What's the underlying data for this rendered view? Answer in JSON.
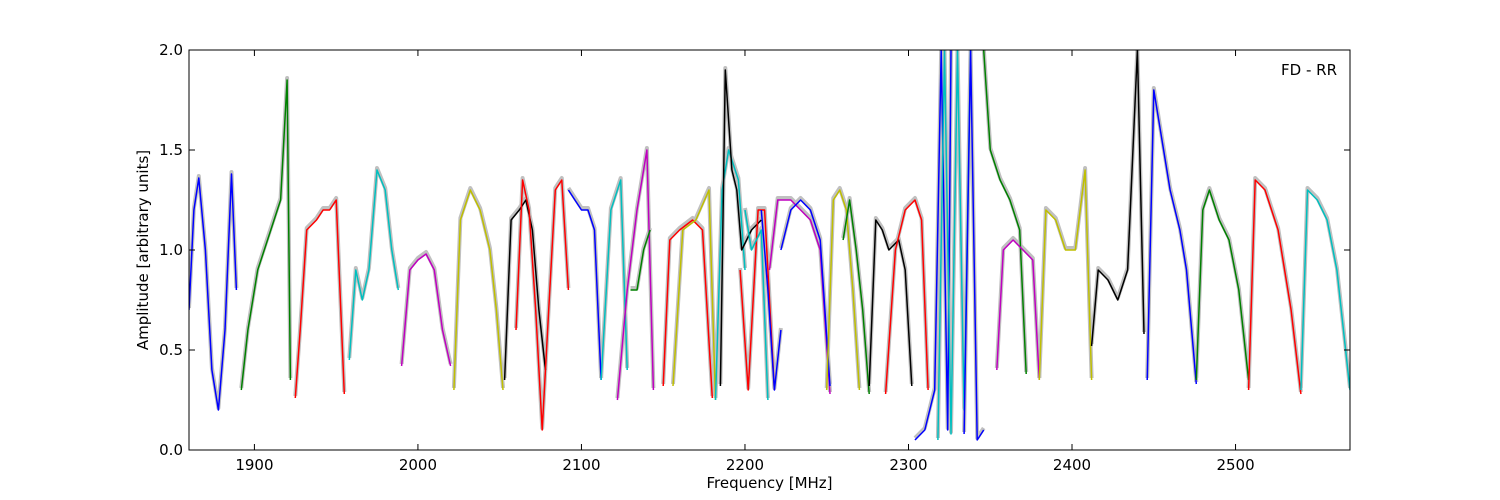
{
  "chart_data": {
    "type": "line",
    "title": "",
    "xlabel": "Frequency [MHz]",
    "ylabel": "Amplitude [arbitrary units]",
    "xlim": [
      1860,
      2570
    ],
    "ylim": [
      0.0,
      2.0
    ],
    "xticks": [
      {
        "value": 1900,
        "label": "1900"
      },
      {
        "value": 2000,
        "label": "2000"
      },
      {
        "value": 2100,
        "label": "2100"
      },
      {
        "value": 2200,
        "label": "2200"
      },
      {
        "value": 2300,
        "label": "2300"
      },
      {
        "value": 2400,
        "label": "2400"
      },
      {
        "value": 2500,
        "label": "2500"
      }
    ],
    "yticks": [
      {
        "value": 0.0,
        "label": "0.0"
      },
      {
        "value": 0.5,
        "label": "0.5"
      },
      {
        "value": 1.0,
        "label": "1.0"
      },
      {
        "value": 1.5,
        "label": "1.5"
      },
      {
        "value": 2.0,
        "label": "2.0"
      }
    ],
    "grid": false,
    "annotation": {
      "text": "FD - RR",
      "placement": "top-right"
    },
    "background_color": "#c0c0c0",
    "series": [
      {
        "color": "#0000ff",
        "x": [
          1860,
          1863,
          1866,
          1870,
          1874,
          1878,
          1882,
          1886,
          1889
        ],
        "y": [
          0.7,
          1.2,
          1.36,
          1.0,
          0.4,
          0.2,
          0.6,
          1.38,
          0.8
        ]
      },
      {
        "color": "#008000",
        "x": [
          1892,
          1896,
          1902,
          1910,
          1916,
          1920,
          1922
        ],
        "y": [
          0.3,
          0.6,
          0.9,
          1.1,
          1.25,
          1.85,
          0.35
        ]
      },
      {
        "color": "#ff0000",
        "x": [
          1925,
          1928,
          1932,
          1938,
          1942,
          1946,
          1950,
          1955
        ],
        "y": [
          0.26,
          0.6,
          1.1,
          1.15,
          1.2,
          1.2,
          1.25,
          0.28
        ]
      },
      {
        "color": "#00bfbf",
        "x": [
          1958,
          1962,
          1966,
          1970,
          1975,
          1980,
          1984,
          1988
        ],
        "y": [
          0.45,
          0.9,
          0.75,
          0.9,
          1.4,
          1.3,
          1.0,
          0.8
        ]
      },
      {
        "color": "#bf00bf",
        "x": [
          1990,
          1995,
          2000,
          2005,
          2010,
          2015,
          2020
        ],
        "y": [
          0.42,
          0.9,
          0.95,
          0.98,
          0.9,
          0.6,
          0.42
        ]
      },
      {
        "color": "#bfbf00",
        "x": [
          2022,
          2026,
          2032,
          2038,
          2044,
          2048,
          2052
        ],
        "y": [
          0.3,
          1.15,
          1.3,
          1.2,
          1.0,
          0.7,
          0.3
        ]
      },
      {
        "color": "#000000",
        "x": [
          2053,
          2057,
          2062,
          2066,
          2070,
          2074,
          2078
        ],
        "y": [
          0.35,
          1.15,
          1.2,
          1.25,
          1.1,
          0.7,
          0.4
        ]
      },
      {
        "color": "#ff0000",
        "x": [
          2060,
          2064,
          2068,
          2072,
          2076,
          2080,
          2084,
          2088,
          2092
        ],
        "y": [
          0.6,
          1.35,
          1.2,
          0.7,
          0.1,
          0.7,
          1.3,
          1.35,
          0.8
        ]
      },
      {
        "color": "#0000ff",
        "x": [
          2092,
          2096,
          2100,
          2104,
          2108,
          2112
        ],
        "y": [
          1.3,
          1.25,
          1.2,
          1.2,
          1.1,
          0.35
        ]
      },
      {
        "color": "#00bfbf",
        "x": [
          2112,
          2118,
          2124,
          2128
        ],
        "y": [
          0.35,
          1.2,
          1.35,
          0.4
        ]
      },
      {
        "color": "#bf00bf",
        "x": [
          2122,
          2128,
          2134,
          2140,
          2144
        ],
        "y": [
          0.25,
          0.8,
          1.2,
          1.5,
          0.3
        ]
      },
      {
        "color": "#008000",
        "x": [
          2130,
          2134,
          2138,
          2142
        ],
        "y": [
          0.8,
          0.8,
          1.0,
          1.1
        ]
      },
      {
        "color": "#ff0000",
        "x": [
          2150,
          2154,
          2160,
          2168,
          2174,
          2180
        ],
        "y": [
          0.32,
          1.05,
          1.1,
          1.15,
          1.1,
          0.26
        ]
      },
      {
        "color": "#bfbf00",
        "x": [
          2156,
          2162,
          2170,
          2178,
          2182
        ],
        "y": [
          0.32,
          1.1,
          1.15,
          1.3,
          0.25
        ]
      },
      {
        "color": "#00bfbf",
        "x": [
          2182,
          2186,
          2190,
          2196,
          2200
        ],
        "y": [
          0.25,
          1.3,
          1.5,
          1.35,
          0.9
        ]
      },
      {
        "color": "#000000",
        "x": [
          2185,
          2188,
          2192,
          2195,
          2198,
          2204,
          2210
        ],
        "y": [
          0.32,
          1.9,
          1.4,
          1.3,
          1.0,
          1.1,
          1.15
        ]
      },
      {
        "color": "#ff0000",
        "x": [
          2197,
          2202,
          2208,
          2212,
          2218
        ],
        "y": [
          0.9,
          0.3,
          1.2,
          1.2,
          0.3
        ]
      },
      {
        "color": "#00bfbf",
        "x": [
          2200,
          2204,
          2210,
          2214
        ],
        "y": [
          1.2,
          1.0,
          1.1,
          0.25
        ]
      },
      {
        "color": "#0000ff",
        "x": [
          2210,
          2214,
          2218,
          2222
        ],
        "y": [
          1.2,
          0.8,
          0.3,
          0.6
        ]
      },
      {
        "color": "#bf00bf",
        "x": [
          2215,
          2220,
          2228,
          2234,
          2240,
          2246,
          2252
        ],
        "y": [
          0.9,
          1.25,
          1.25,
          1.2,
          1.15,
          1.0,
          0.28
        ]
      },
      {
        "color": "#0000ff",
        "x": [
          2222,
          2228,
          2234,
          2240,
          2246,
          2252
        ],
        "y": [
          1.0,
          1.2,
          1.25,
          1.2,
          1.05,
          0.32
        ]
      },
      {
        "color": "#bfbf00",
        "x": [
          2250,
          2254,
          2258,
          2262,
          2266,
          2270
        ],
        "y": [
          0.3,
          1.25,
          1.3,
          1.2,
          0.8,
          0.3
        ]
      },
      {
        "color": "#008000",
        "x": [
          2260,
          2264,
          2268,
          2272,
          2276
        ],
        "y": [
          1.05,
          1.25,
          1.0,
          0.7,
          0.28
        ]
      },
      {
        "color": "#000000",
        "x": [
          2276,
          2280,
          2284,
          2288,
          2294,
          2298,
          2302
        ],
        "y": [
          0.32,
          1.15,
          1.1,
          1.0,
          1.05,
          0.9,
          0.32
        ]
      },
      {
        "color": "#ff0000",
        "x": [
          2286,
          2292,
          2298,
          2304,
          2308,
          2312
        ],
        "y": [
          0.28,
          1.0,
          1.2,
          1.25,
          1.15,
          0.3
        ]
      },
      {
        "color": "#0000ff",
        "x": [
          2304,
          2310,
          2316,
          2320,
          2324,
          2326
        ],
        "y": [
          0.05,
          0.1,
          0.3,
          2.0,
          0.1,
          2.0
        ]
      },
      {
        "color": "#00bfbf",
        "x": [
          2318,
          2322,
          2326,
          2330,
          2334,
          2338
        ],
        "y": [
          0.05,
          2.0,
          0.08,
          2.0,
          0.2,
          2.0
        ]
      },
      {
        "color": "#0000ff",
        "x": [
          2334,
          2338,
          2342,
          2346
        ],
        "y": [
          0.08,
          2.0,
          0.05,
          0.1
        ]
      },
      {
        "color": "#008000",
        "x": [
          2346,
          2350,
          2356,
          2362,
          2368,
          2372
        ],
        "y": [
          2.0,
          1.5,
          1.35,
          1.25,
          1.1,
          0.38
        ]
      },
      {
        "color": "#bf00bf",
        "x": [
          2354,
          2358,
          2364,
          2370,
          2376,
          2380
        ],
        "y": [
          0.4,
          1.0,
          1.05,
          1.0,
          0.95,
          0.35
        ]
      },
      {
        "color": "#bfbf00",
        "x": [
          2380,
          2384,
          2390,
          2396,
          2402,
          2408,
          2412
        ],
        "y": [
          0.35,
          1.2,
          1.15,
          1.0,
          1.0,
          1.4,
          0.35
        ]
      },
      {
        "color": "#000000",
        "x": [
          2412,
          2416,
          2422,
          2428,
          2434,
          2440,
          2444
        ],
        "y": [
          0.52,
          0.9,
          0.85,
          0.75,
          0.9,
          2.0,
          0.58
        ]
      },
      {
        "color": "#0000ff",
        "x": [
          2446,
          2450,
          2456,
          2460,
          2466,
          2470,
          2476
        ],
        "y": [
          0.35,
          1.8,
          1.5,
          1.3,
          1.1,
          0.9,
          0.33
        ]
      },
      {
        "color": "#008000",
        "x": [
          2476,
          2480,
          2484,
          2490,
          2496,
          2502,
          2508
        ],
        "y": [
          0.35,
          1.2,
          1.3,
          1.15,
          1.05,
          0.8,
          0.35
        ]
      },
      {
        "color": "#ff0000",
        "x": [
          2508,
          2512,
          2518,
          2526,
          2534,
          2540
        ],
        "y": [
          0.3,
          1.35,
          1.3,
          1.1,
          0.7,
          0.28
        ]
      },
      {
        "color": "#00bfbf",
        "x": [
          2540,
          2544,
          2550,
          2556,
          2562,
          2570
        ],
        "y": [
          0.3,
          1.3,
          1.25,
          1.15,
          0.9,
          0.3
        ]
      }
    ]
  }
}
